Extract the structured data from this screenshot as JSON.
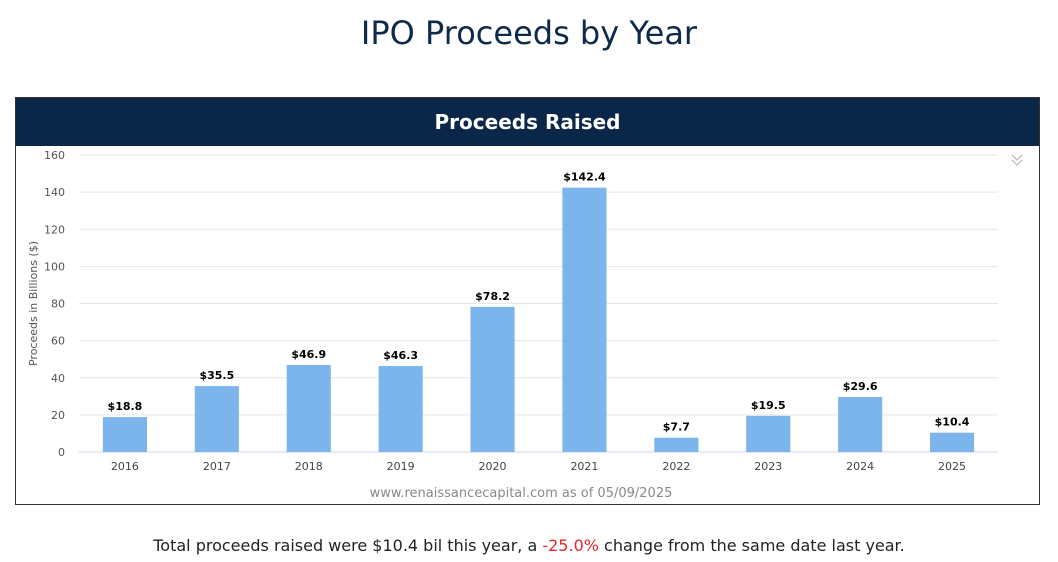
{
  "page": {
    "title": "IPO Proceeds by Year"
  },
  "panel": {
    "header": "Proceeds Raised"
  },
  "colors": {
    "bar": "#7cb5ec",
    "header_bg": "#0a2649",
    "negative": "#e8232b"
  },
  "chart_data": {
    "type": "bar",
    "title": "Proceeds Raised",
    "ylabel": "Proceeds in Billions ($)",
    "xlabel": "",
    "categories": [
      "2016",
      "2017",
      "2018",
      "2019",
      "2020",
      "2021",
      "2022",
      "2023",
      "2024",
      "2025"
    ],
    "values": [
      18.8,
      35.5,
      46.9,
      46.3,
      78.2,
      142.4,
      7.7,
      19.5,
      29.6,
      10.4
    ],
    "data_labels": [
      "$18.8",
      "$35.5",
      "$46.9",
      "$46.3",
      "$78.2",
      "$142.4",
      "$7.7",
      "$19.5",
      "$29.6",
      "$10.4"
    ],
    "ylim": [
      0,
      160
    ],
    "yticks": [
      "0",
      "20",
      "40",
      "60",
      "80",
      "100",
      "120",
      "140",
      "160"
    ],
    "grid": true,
    "credit": "www.renaissancecapital.com as of 05/09/2025"
  },
  "footnote": {
    "prefix": "Total proceeds raised were $10.4 bil this year, a ",
    "change": "-25.0%",
    "suffix": " change from the same date last year."
  },
  "icons": {
    "menu": "double-chevron-down-icon"
  }
}
